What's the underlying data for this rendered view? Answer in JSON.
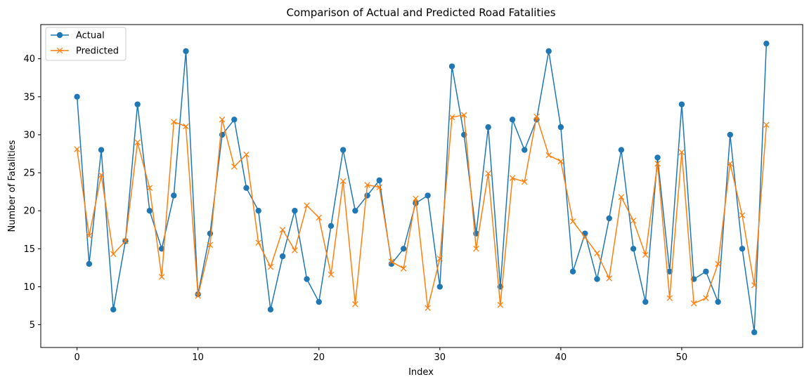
{
  "chart_data": {
    "type": "line",
    "title": "Comparison of Actual and Predicted Road Fatalities",
    "xlabel": "Index",
    "ylabel": "Number of Fatalities",
    "xlim": [
      -3,
      60
    ],
    "ylim": [
      2.0,
      44.5
    ],
    "xticks": [
      0,
      10,
      20,
      30,
      40,
      50
    ],
    "yticks": [
      5,
      10,
      15,
      20,
      25,
      30,
      35,
      40
    ],
    "legend_position": "top-left",
    "grid": false,
    "series": [
      {
        "name": "Actual",
        "color": "#1f77b4",
        "marker": "circle",
        "values": [
          35,
          13,
          28,
          7,
          16,
          34,
          20,
          15,
          22,
          41,
          9,
          17,
          30,
          32,
          23,
          20,
          7,
          14,
          20,
          11,
          8,
          18,
          28,
          20,
          22,
          24,
          13,
          15,
          21,
          22,
          10,
          39,
          30,
          17,
          31,
          10,
          32,
          28,
          32,
          41,
          31,
          12,
          17,
          11,
          19,
          28,
          15,
          8,
          27,
          12,
          34,
          11,
          12,
          8,
          30,
          15,
          4,
          42
        ]
      },
      {
        "name": "Predicted",
        "color": "#ff7f0e",
        "marker": "x",
        "values": [
          28.1,
          16.7,
          24.7,
          14.3,
          16.0,
          29.0,
          23.0,
          11.3,
          31.7,
          31.1,
          8.8,
          15.5,
          32.0,
          25.8,
          27.4,
          15.8,
          12.6,
          17.5,
          14.8,
          20.7,
          19.1,
          11.6,
          23.9,
          7.7,
          23.4,
          23.1,
          13.3,
          12.4,
          21.6,
          7.2,
          13.7,
          32.3,
          32.6,
          15.0,
          24.9,
          7.6,
          24.3,
          23.8,
          32.4,
          27.3,
          26.5,
          18.6,
          16.5,
          14.4,
          11.1,
          21.8,
          18.7,
          14.2,
          26.2,
          8.5,
          27.7,
          7.8,
          8.5,
          13.0,
          26.2,
          19.4,
          10.2,
          31.3
        ]
      }
    ]
  }
}
